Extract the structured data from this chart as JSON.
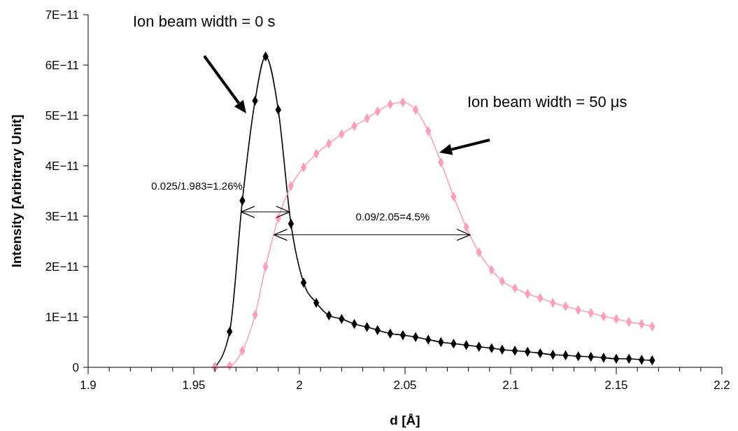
{
  "chart_data": {
    "type": "line",
    "xlabel": "d [Å]",
    "ylabel": "Intensity [Arbitrary Unit]",
    "x": [
      1.96,
      1.967,
      1.973,
      1.979,
      1.984,
      1.99,
      1.996,
      2.002,
      2.008,
      2.014,
      2.02,
      2.026,
      2.032,
      2.037,
      2.043,
      2.049,
      2.055,
      2.061,
      2.067,
      2.073,
      2.079,
      2.085,
      2.091,
      2.096,
      2.102,
      2.108,
      2.114,
      2.12,
      2.126,
      2.132,
      2.138,
      2.144,
      2.15,
      2.156,
      2.162,
      2.167
    ],
    "series": [
      {
        "color": "#000000",
        "values": [
          0,
          7.1e-12,
          3.31e-11,
          5.29e-11,
          6.17e-11,
          5.11e-11,
          2.85e-11,
          1.68e-11,
          1.28e-11,
          1.03e-11,
          9.6e-12,
          8.6e-12,
          8e-12,
          7.4e-12,
          6.7e-12,
          6.4e-12,
          6e-12,
          5.5e-12,
          5e-12,
          4.7e-12,
          4.4e-12,
          4.1e-12,
          3.8e-12,
          3.5e-12,
          3.3e-12,
          3.1e-12,
          2.8e-12,
          2.5e-12,
          2.4e-12,
          2.2e-12,
          2.1e-12,
          1.9e-12,
          1.7e-12,
          1.7e-12,
          1.5e-12,
          1.4e-12
        ]
      },
      {
        "color": "#ff9eb8",
        "values": [
          0,
          3e-13,
          3.3e-12,
          1.04e-11,
          2e-11,
          2.96e-11,
          3.6e-11,
          3.97e-11,
          4.24e-11,
          4.44e-11,
          4.63e-11,
          4.79e-11,
          4.94e-11,
          5.08e-11,
          5.22e-11,
          5.26e-11,
          5.11e-11,
          4.69e-11,
          4.07e-11,
          3.39e-11,
          2.78e-11,
          2.28e-11,
          1.93e-11,
          1.71e-11,
          1.57e-11,
          1.46e-11,
          1.375e-11,
          1.28e-11,
          1.21e-11,
          1.14e-11,
          1.08e-11,
          1.01e-11,
          9.6e-12,
          9e-12,
          8.6e-12,
          8.1e-12
        ]
      }
    ],
    "xlim": [
      1.9,
      2.2
    ],
    "xticks": [
      1.9,
      {
        "value": 1.91,
        "label": null
      },
      {
        "value": 1.92,
        "label": null
      },
      {
        "value": 1.93,
        "label": null
      },
      {
        "value": 1.94,
        "label": null
      },
      1.95,
      {
        "value": 1.96,
        "label": null
      },
      {
        "value": 1.97,
        "label": null
      },
      {
        "value": 1.98,
        "label": null
      },
      {
        "value": 1.99,
        "label": null
      },
      {
        "value": 2,
        "label": "2"
      },
      {
        "value": 2.01,
        "label": null
      },
      {
        "value": 2.02,
        "label": null
      },
      {
        "value": 2.03,
        "label": null
      },
      {
        "value": 2.04,
        "label": null
      },
      2.05,
      {
        "value": 2.06,
        "label": null
      },
      {
        "value": 2.07,
        "label": null
      },
      {
        "value": 2.08,
        "label": null
      },
      {
        "value": 2.09,
        "label": null
      },
      2.1,
      {
        "value": 2.11,
        "label": null
      },
      {
        "value": 2.12,
        "label": null
      },
      {
        "value": 2.13,
        "label": null
      },
      {
        "value": 2.14,
        "label": null
      },
      2.15,
      {
        "value": 2.16,
        "label": null
      },
      {
        "value": 2.17,
        "label": null
      },
      {
        "value": 2.18,
        "label": null
      },
      {
        "value": 2.19,
        "label": null
      },
      2.2
    ],
    "ylim": [
      0,
      7e-11
    ],
    "yticks": [
      0,
      {
        "value": 1e-11,
        "label": "1E−11"
      },
      {
        "value": 2e-11,
        "label": "2E−11"
      },
      {
        "value": 3e-11,
        "label": "3E−11"
      },
      {
        "value": 4e-11,
        "label": "4E−11"
      },
      {
        "value": 5e-11,
        "label": "5E−11"
      },
      {
        "value": 6e-11,
        "label": "6E−11"
      },
      {
        "value": 7e-11,
        "label": "7E−11"
      }
    ],
    "marker": "diamond",
    "line_style": "solid",
    "grid": false,
    "annotations": [
      "Ion beam width = 0 s",
      "Ion beam width = 50 μs",
      "0.025/1.983=1.26%",
      "0.09/2.05=4.5%"
    ]
  }
}
